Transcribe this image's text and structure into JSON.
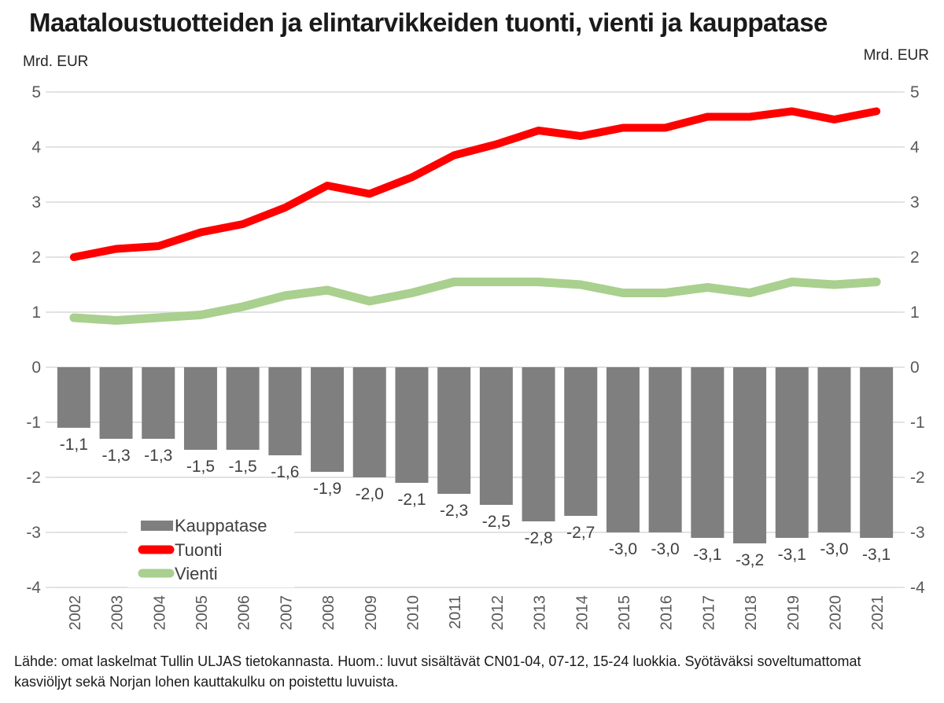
{
  "title": "Maataloustuotteiden ja elintarvikkeiden tuonti, vienti ja kauppatase",
  "axis_unit_left": "Mrd. EUR",
  "axis_unit_right": "Mrd. EUR",
  "footnote_line1": "Lähde: omat laskelmat Tullin ULJAS tietokannasta. Huom.: luvut sisältävät CN01-04, 07-12, 15-24 luokkia. Syötäväksi soveltumattomat",
  "footnote_line2": "kasviöljyt sekä Norjan lohen kauttakulku on poistettu luvuista.",
  "colors": {
    "bar": "#7F7F7F",
    "tuonti": "#FF0000",
    "vienti": "#A9D08E",
    "gridline": "#D9D9D9",
    "axis_text": "#595959",
    "data_label": "#404040",
    "legend_text": "#404040",
    "legend_bg": "#FFFFFF"
  },
  "chart_data": {
    "type": "combo",
    "subtypes": [
      "bar",
      "line",
      "line"
    ],
    "categories": [
      "2002",
      "2003",
      "2004",
      "2005",
      "2006",
      "2007",
      "2008",
      "2009",
      "2010",
      "2011",
      "2012",
      "2013",
      "2014",
      "2015",
      "2016",
      "2017",
      "2018",
      "2019",
      "2020",
      "2021"
    ],
    "series": [
      {
        "name": "Kauppatase",
        "type": "bar",
        "values": [
          -1.1,
          -1.3,
          -1.3,
          -1.5,
          -1.5,
          -1.6,
          -1.9,
          -2.0,
          -2.1,
          -2.3,
          -2.5,
          -2.8,
          -2.7,
          -3.0,
          -3.0,
          -3.1,
          -3.2,
          -3.1,
          -3.0,
          -3.1
        ],
        "labels": [
          "-1,1",
          "-1,3",
          "-1,3",
          "-1,5",
          "-1,5",
          "-1,6",
          "-1,9",
          "-2,0",
          "-2,1",
          "-2,3",
          "-2,5",
          "-2,8",
          "-2,7",
          "-3,0",
          "-3,0",
          "-3,1",
          "-3,2",
          "-3,1",
          "-3,0",
          "-3,1"
        ]
      },
      {
        "name": "Tuonti",
        "type": "line",
        "values": [
          2.0,
          2.15,
          2.2,
          2.45,
          2.6,
          2.9,
          3.3,
          3.15,
          3.45,
          3.85,
          4.05,
          4.3,
          4.2,
          4.35,
          4.35,
          4.55,
          4.55,
          4.65,
          4.5,
          4.65
        ]
      },
      {
        "name": "Vienti",
        "type": "line",
        "values": [
          0.9,
          0.85,
          0.9,
          0.95,
          1.1,
          1.3,
          1.4,
          1.2,
          1.35,
          1.55,
          1.55,
          1.55,
          1.5,
          1.35,
          1.35,
          1.45,
          1.35,
          1.55,
          1.5,
          1.55
        ]
      }
    ],
    "ylim": [
      -4,
      5
    ],
    "y_ticks": [
      5,
      4,
      3,
      2,
      1,
      0,
      -1,
      -2,
      -3,
      -4
    ],
    "xlabel": "",
    "ylabel": "Mrd. EUR",
    "grid": true,
    "legend_position": "inside-bottom-left"
  }
}
